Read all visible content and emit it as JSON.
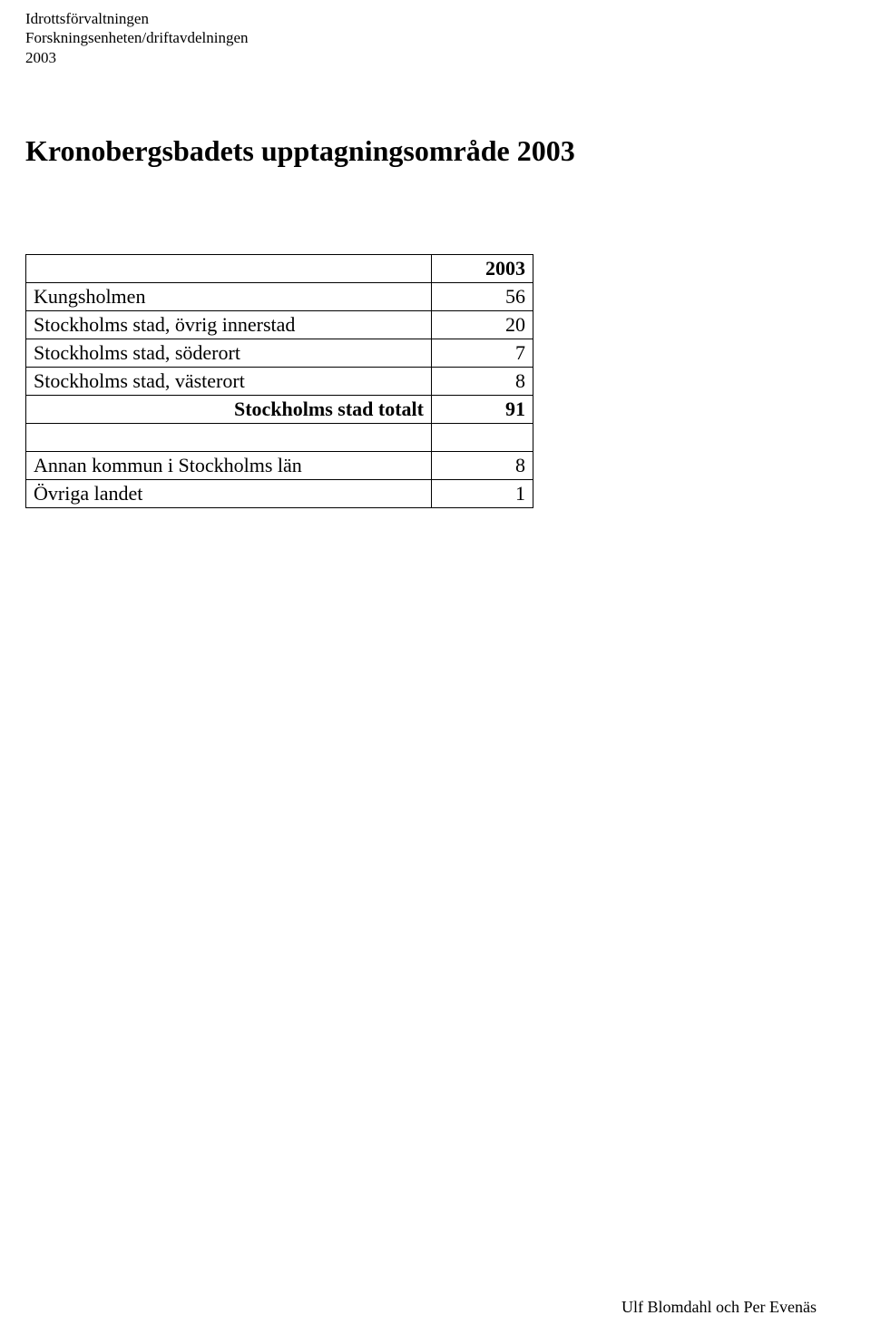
{
  "header": {
    "line1": "Idrottsförvaltningen",
    "line2": "Forskningsenheten/driftavdelningen",
    "line3": "2003"
  },
  "title": "Kronobergsbadets upptagningsområde 2003",
  "table": {
    "year_header": "2003",
    "rows": [
      {
        "label": "Kungsholmen",
        "value": "56",
        "bold": false,
        "label_align": "left"
      },
      {
        "label": "Stockholms stad, övrig innerstad",
        "value": "20",
        "bold": false,
        "label_align": "left"
      },
      {
        "label": "Stockholms stad, söderort",
        "value": "7",
        "bold": false,
        "label_align": "left"
      },
      {
        "label": "Stockholms stad, västerort",
        "value": "8",
        "bold": false,
        "label_align": "left"
      },
      {
        "label": "Stockholms stad totalt",
        "value": "91",
        "bold": true,
        "label_align": "right"
      }
    ],
    "rows2": [
      {
        "label": "Annan kommun i Stockholms län",
        "value": "8",
        "bold": false,
        "label_align": "left"
      },
      {
        "label": "Övriga landet",
        "value": "1",
        "bold": false,
        "label_align": "left"
      }
    ]
  },
  "footer": "Ulf Blomdahl och Per Evenäs"
}
